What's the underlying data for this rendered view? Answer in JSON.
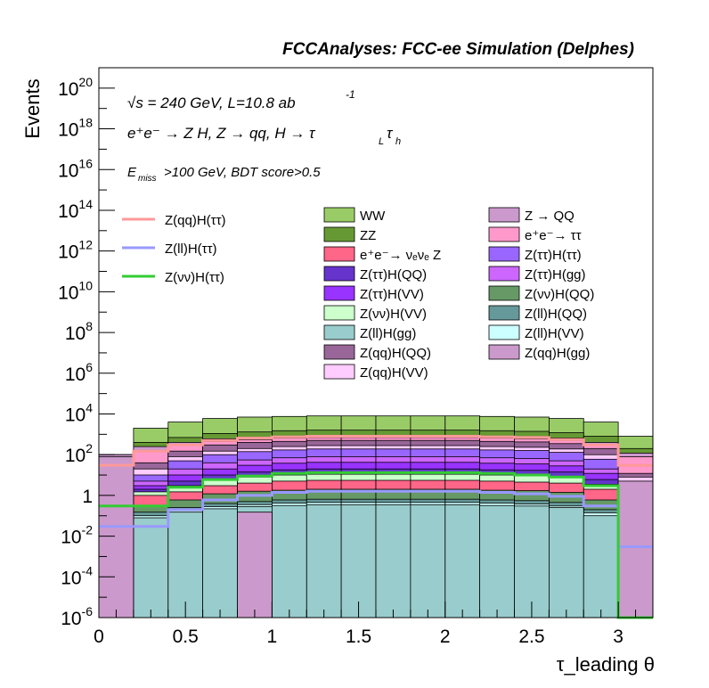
{
  "chart_data": {
    "type": "histogram",
    "title": "FCCAnalyses: FCC-ee Simulation (Delphes)",
    "xlabel": "τ_leading θ",
    "ylabel": "Events",
    "xlim": [
      0,
      3.2
    ],
    "ylim": [
      1e-06,
      1e+21
    ],
    "yscale": "log",
    "bin_edges": [
      0,
      0.2,
      0.4,
      0.6,
      0.8,
      1.0,
      1.2,
      1.4,
      1.6,
      1.8,
      2.0,
      2.2,
      2.4,
      2.6,
      2.8,
      3.0,
      3.2
    ],
    "x_ticks": [
      "0",
      "0.5",
      "1",
      "1.5",
      "2",
      "2.5",
      "3"
    ],
    "x_tick_values": [
      0,
      0.5,
      1,
      1.5,
      2,
      2.5,
      3
    ],
    "y_ticks": [
      {
        "value": 1e-06,
        "base": "10",
        "exp": "-6"
      },
      {
        "value": 0.0001,
        "base": "10",
        "exp": "-4"
      },
      {
        "value": 0.01,
        "base": "10",
        "exp": "-2"
      },
      {
        "value": 1,
        "base": "1",
        "exp": ""
      },
      {
        "value": 100.0,
        "base": "10",
        "exp": "2"
      },
      {
        "value": 10000.0,
        "base": "10",
        "exp": "4"
      },
      {
        "value": 1000000.0,
        "base": "10",
        "exp": "6"
      },
      {
        "value": 100000000.0,
        "base": "10",
        "exp": "8"
      },
      {
        "value": 10000000000.0,
        "base": "10",
        "exp": "10"
      },
      {
        "value": 1000000000000.0,
        "base": "10",
        "exp": "12"
      },
      {
        "value": 100000000000000.0,
        "base": "10",
        "exp": "14"
      },
      {
        "value": 1e+16,
        "base": "10",
        "exp": "16"
      },
      {
        "value": 1e+18,
        "base": "10",
        "exp": "18"
      },
      {
        "value": 1e+20,
        "base": "10",
        "exp": "20"
      }
    ],
    "annotations": {
      "line1": "√s = 240 GeV, L=10.8 ab",
      "line1_sup": "-1",
      "line2": "e⁺e⁻ → Z H, Z → qq, H → τ",
      "line2_sub1": "L",
      "line2_tau": "τ",
      "line2_sub2": "h",
      "line3_pre": "E",
      "line3_sub": "miss",
      "line3_post": ">100 GeV, BDT score>0.5"
    },
    "stacked_totals": {
      "WW": [
        100,
        2000,
        4000,
        6000,
        7000,
        7500,
        8000,
        8000,
        8000,
        8000,
        8000,
        7500,
        7000,
        6000,
        4000,
        800,
        0
      ],
      "ZZ": [
        100,
        400,
        700,
        1100,
        1300,
        1500,
        1600,
        1600,
        1600,
        1600,
        1600,
        1500,
        1400,
        1200,
        800,
        200,
        0
      ],
      "Z(qq)H(gg)": [
        100,
        250,
        400,
        600,
        700,
        800,
        850,
        850,
        850,
        850,
        850,
        800,
        750,
        650,
        400,
        120,
        0
      ],
      "e+e- → ττ": [
        30,
        150,
        300,
        450,
        550,
        650,
        700,
        700,
        700,
        700,
        700,
        650,
        600,
        500,
        300,
        80,
        0
      ],
      "Z(qq)H(QQ)": [
        10,
        40,
        150,
        300,
        400,
        450,
        500,
        500,
        500,
        500,
        500,
        450,
        420,
        350,
        200,
        12,
        0
      ],
      "Z(qq)H(VV)": [
        6,
        20,
        80,
        150,
        200,
        250,
        280,
        280,
        280,
        280,
        280,
        250,
        230,
        190,
        100,
        8,
        0
      ],
      "Z(ττ)H(ττ)": [
        4,
        10,
        50,
        100,
        140,
        170,
        190,
        190,
        190,
        190,
        190,
        170,
        160,
        130,
        60,
        5,
        0
      ],
      "Z(ττ)H(gg)": [
        2,
        5,
        20,
        40,
        55,
        70,
        80,
        80,
        80,
        80,
        80,
        70,
        65,
        50,
        20,
        2,
        0
      ],
      "Z(ττ)H(VV)": [
        1.5,
        3,
        10,
        20,
        30,
        38,
        42,
        42,
        42,
        42,
        42,
        38,
        35,
        28,
        12,
        1.2,
        0
      ],
      "Z(ττ)H(QQ)": [
        1.0,
        2,
        5,
        10,
        14,
        18,
        20,
        20,
        20,
        20,
        20,
        18,
        17,
        14,
        6,
        0.8,
        0
      ],
      "Z(νν)H(VV)": [
        0.8,
        1.5,
        3,
        6,
        8,
        10,
        11,
        11,
        11,
        11,
        11,
        10,
        9,
        8,
        3.5,
        0.6,
        0
      ],
      "e+e- → νeνe Z": [
        0.5,
        1.0,
        1.5,
        3,
        4,
        5,
        5.5,
        5.5,
        5.5,
        5.5,
        5.5,
        5,
        4.5,
        4,
        2,
        0.4,
        0
      ],
      "Z(νν)H(QQ)": [
        0.3,
        0.3,
        0.6,
        1.2,
        1.6,
        1.8,
        2.0,
        2.0,
        2.0,
        2.0,
        2.0,
        1.8,
        1.7,
        1.4,
        0.6,
        0.3,
        0
      ],
      "Z(ll)H(QQ)": [
        0.15,
        0.15,
        0.25,
        0.4,
        0.5,
        0.6,
        0.65,
        0.65,
        0.65,
        0.65,
        0.65,
        0.6,
        0.55,
        0.45,
        0.2,
        0.15,
        0
      ],
      "Z(ll)H(VV)": [
        0.1,
        0.1,
        0.18,
        0.28,
        0.35,
        0.42,
        0.45,
        0.45,
        0.45,
        0.45,
        0.45,
        0.42,
        0.38,
        0.3,
        0.14,
        0.1,
        0
      ],
      "Z(ll)H(gg)": [
        0.08,
        0.08,
        0.15,
        0.22,
        0.28,
        0.32,
        0.35,
        0.35,
        0.35,
        0.35,
        0.35,
        0.32,
        0.3,
        0.25,
        0.1,
        0.08,
        0
      ],
      "Z → QQ": [
        80,
        0,
        0,
        0,
        0.15,
        0,
        0,
        0,
        0,
        0,
        0,
        0,
        0,
        0,
        0,
        5,
        0
      ]
    },
    "z_qq_extra_bins": {
      "note_bin_index": 15,
      "value": 5
    },
    "overlay_lines": [
      {
        "name": "Z(qq)H(ττ)",
        "color": "#ff9999",
        "values": [
          30,
          150,
          300,
          500,
          650,
          750,
          800,
          800,
          800,
          800,
          800,
          750,
          700,
          550,
          300,
          30
        ]
      },
      {
        "name": "Z(ll)H(ττ)",
        "color": "#9999ff",
        "values": [
          0.03,
          0.03,
          0.2,
          0.6,
          1.0,
          1.4,
          1.6,
          1.6,
          1.6,
          1.6,
          1.6,
          1.4,
          1.2,
          0.9,
          0.3,
          0.003
        ]
      },
      {
        "name": "Z(νν)H(ττ)",
        "color": "#33cc33",
        "values": [
          0.3,
          0.3,
          2.5,
          6,
          9,
          12,
          13,
          13,
          13,
          13,
          13,
          12,
          10,
          8,
          3,
          1e-06
        ]
      }
    ],
    "legend_lines": [
      {
        "label": "Z(qq)H(ττ)",
        "color": "#ff9999"
      },
      {
        "label": "Z(ll)H(ττ)",
        "color": "#9999ff"
      },
      {
        "label": "Z(νν)H(ττ)",
        "color": "#33cc33"
      }
    ],
    "legend_fills_col1": [
      {
        "label": "WW",
        "color": "#99cc66"
      },
      {
        "label": "ZZ",
        "color": "#669933"
      },
      {
        "label": "e⁺e⁻→ νₑνₑ Z",
        "color": "#ff6688"
      },
      {
        "label": "Z(ττ)H(QQ)",
        "color": "#6633cc"
      },
      {
        "label": "Z(ττ)H(VV)",
        "color": "#9933ff"
      },
      {
        "label": "Z(νν)H(VV)",
        "color": "#ccffcc"
      },
      {
        "label": "Z(ll)H(gg)",
        "color": "#99cccc"
      },
      {
        "label": "Z(qq)H(QQ)",
        "color": "#996699"
      },
      {
        "label": "Z(qq)H(VV)",
        "color": "#ffccff"
      }
    ],
    "legend_fills_col2": [
      {
        "label": "Z → QQ",
        "color": "#cc99cc"
      },
      {
        "label": "e⁺e⁻→ ττ",
        "color": "#ff99cc"
      },
      {
        "label": "Z(ττ)H(ττ)",
        "color": "#9966ff"
      },
      {
        "label": "Z(ττ)H(gg)",
        "color": "#cc66ff"
      },
      {
        "label": "Z(νν)H(QQ)",
        "color": "#669966"
      },
      {
        "label": "Z(ll)H(QQ)",
        "color": "#669999"
      },
      {
        "label": "Z(ll)H(VV)",
        "color": "#ccffff"
      },
      {
        "label": "Z(qq)H(gg)",
        "color": "#cc99cc"
      }
    ]
  }
}
